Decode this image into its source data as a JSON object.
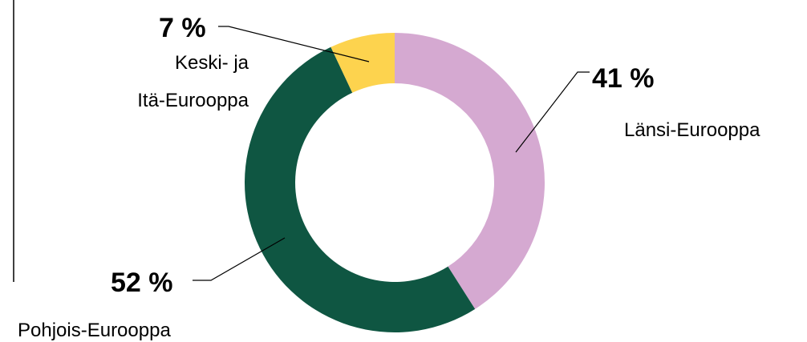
{
  "chart_data": {
    "type": "pie",
    "variant": "donut",
    "title": "",
    "unit": "%",
    "slices": [
      {
        "label": "Länsi-Eurooppa",
        "value": 41,
        "value_label": "41 %",
        "color": "#d5a9d1"
      },
      {
        "label": "Pohjois-Eurooppa",
        "value": 52,
        "value_label": "52 %",
        "color": "#0f5642"
      },
      {
        "label_lines": [
          "Keski- ja",
          "Itä-Eurooppa"
        ],
        "label": "Keski- ja Itä-Eurooppa",
        "value": 7,
        "value_label": "7 %",
        "color": "#fdd34e"
      }
    ],
    "start_angle": "top, clockwise",
    "legend": "none (leader-line labels)"
  }
}
